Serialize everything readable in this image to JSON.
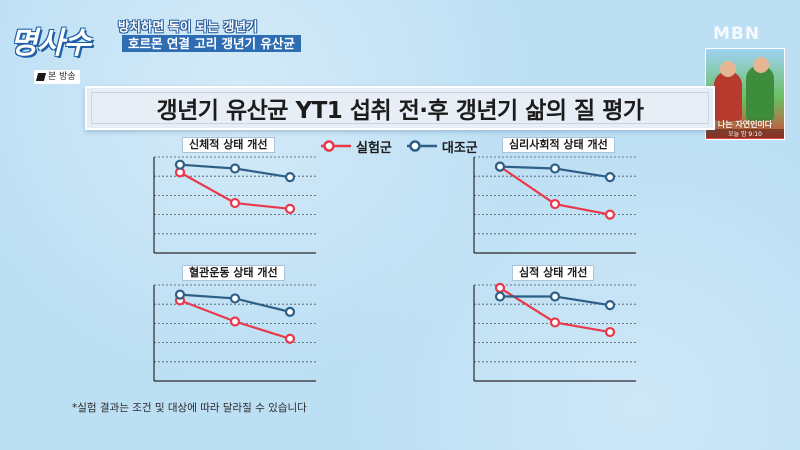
{
  "header": {
    "logo_text": "명사수",
    "subtitle_line1": "방치하면 독이 되는 갱년기",
    "subtitle_line2": "호르몬 연결 고리 갱년기 유산균",
    "broadcast_badge": "본 방송",
    "channel_watermark": "MBN"
  },
  "promo": {
    "caption": "나는 자연인이다",
    "time": "오늘 밤 9:10"
  },
  "title": "갱년기 유산균 YT1 섭취 전·후 갱년기 삶의 질 평가",
  "legend": [
    {
      "name": "실험군",
      "color": "#e8394b"
    },
    {
      "name": "대조군",
      "color": "#2f5f87"
    }
  ],
  "footnote": "*실험 결과는 조건 및 대상에 따라 달라질 수 있습니다",
  "chart_data": [
    {
      "type": "line",
      "title": "신체적 상태 개선",
      "x": [
        1,
        2,
        3
      ],
      "series": [
        {
          "name": "실험군",
          "values": [
            4.2,
            2.6,
            2.3
          ],
          "color": "#e8394b"
        },
        {
          "name": "대조군",
          "values": [
            4.6,
            4.4,
            3.95
          ],
          "color": "#2f5f87"
        }
      ],
      "ylim": [
        0,
        5
      ],
      "grid": true
    },
    {
      "type": "line",
      "title": "심리사회적 상태 개선",
      "x": [
        1,
        2,
        3
      ],
      "series": [
        {
          "name": "실험군",
          "values": [
            4.5,
            2.55,
            2.0
          ],
          "color": "#e8394b"
        },
        {
          "name": "대조군",
          "values": [
            4.5,
            4.4,
            3.95
          ],
          "color": "#2f5f87"
        }
      ],
      "ylim": [
        0,
        5
      ],
      "grid": true
    },
    {
      "type": "line",
      "title": "혈관운동 상태 개선",
      "x": [
        1,
        2,
        3
      ],
      "series": [
        {
          "name": "실험군",
          "values": [
            4.2,
            3.1,
            2.2
          ],
          "color": "#e8394b"
        },
        {
          "name": "대조군",
          "values": [
            4.5,
            4.3,
            3.6
          ],
          "color": "#2f5f87"
        }
      ],
      "ylim": [
        0,
        5
      ],
      "grid": true
    },
    {
      "type": "line",
      "title": "심적 상태 개선",
      "x": [
        1,
        2,
        3
      ],
      "series": [
        {
          "name": "실험군",
          "values": [
            4.85,
            3.05,
            2.55
          ],
          "color": "#e8394b"
        },
        {
          "name": "대조군",
          "values": [
            4.4,
            4.4,
            3.95
          ],
          "color": "#2f5f87"
        }
      ],
      "ylim": [
        0,
        5
      ],
      "grid": true
    }
  ]
}
